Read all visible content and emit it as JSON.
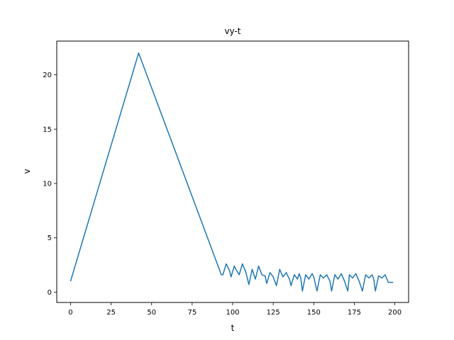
{
  "chart_data": {
    "type": "line",
    "title": "vy-t",
    "xlabel": "t",
    "ylabel": "v",
    "xlim": [
      -8.5,
      208.5
    ],
    "ylim": [
      -0.95,
      23.1
    ],
    "xticks": [
      0,
      25,
      50,
      75,
      100,
      125,
      150,
      175,
      200
    ],
    "yticks": [
      0,
      5,
      10,
      15,
      20
    ],
    "grid": false,
    "legend": "none",
    "colors": {
      "line": "#1f77b4",
      "axes": "#000000",
      "background": "#ffffff"
    },
    "series": [
      {
        "x": [
          0,
          42,
          93,
          94,
          96,
          98,
          99,
          101,
          102,
          104,
          106,
          108,
          110,
          112,
          114,
          116,
          118,
          120,
          121,
          123,
          125,
          127,
          129,
          131,
          133,
          135,
          136,
          138,
          140,
          141,
          142,
          143,
          145,
          147,
          149,
          150,
          152,
          154,
          156,
          158,
          160,
          161,
          163,
          165,
          167,
          169,
          171,
          172,
          174,
          176,
          178,
          180,
          182,
          184,
          186,
          187,
          188,
          190,
          192,
          194,
          196,
          197,
          199
        ],
        "y": [
          1.0,
          22.0,
          1.6,
          1.6,
          2.6,
          2.0,
          1.4,
          2.4,
          2.1,
          1.6,
          2.6,
          1.9,
          0.7,
          2.1,
          1.2,
          2.4,
          1.6,
          1.5,
          0.8,
          1.8,
          1.4,
          0.6,
          2.1,
          1.4,
          1.8,
          1.2,
          0.6,
          1.6,
          1.2,
          1.7,
          1.3,
          0.1,
          1.6,
          1.2,
          1.7,
          1.4,
          0.1,
          1.6,
          1.3,
          1.6,
          1.0,
          0.1,
          1.6,
          1.2,
          1.7,
          1.0,
          0.1,
          1.6,
          1.3,
          1.7,
          1.0,
          0.1,
          1.6,
          1.3,
          1.6,
          1.2,
          0.1,
          1.5,
          1.3,
          1.6,
          0.9,
          0.9,
          0.9
        ]
      }
    ]
  }
}
